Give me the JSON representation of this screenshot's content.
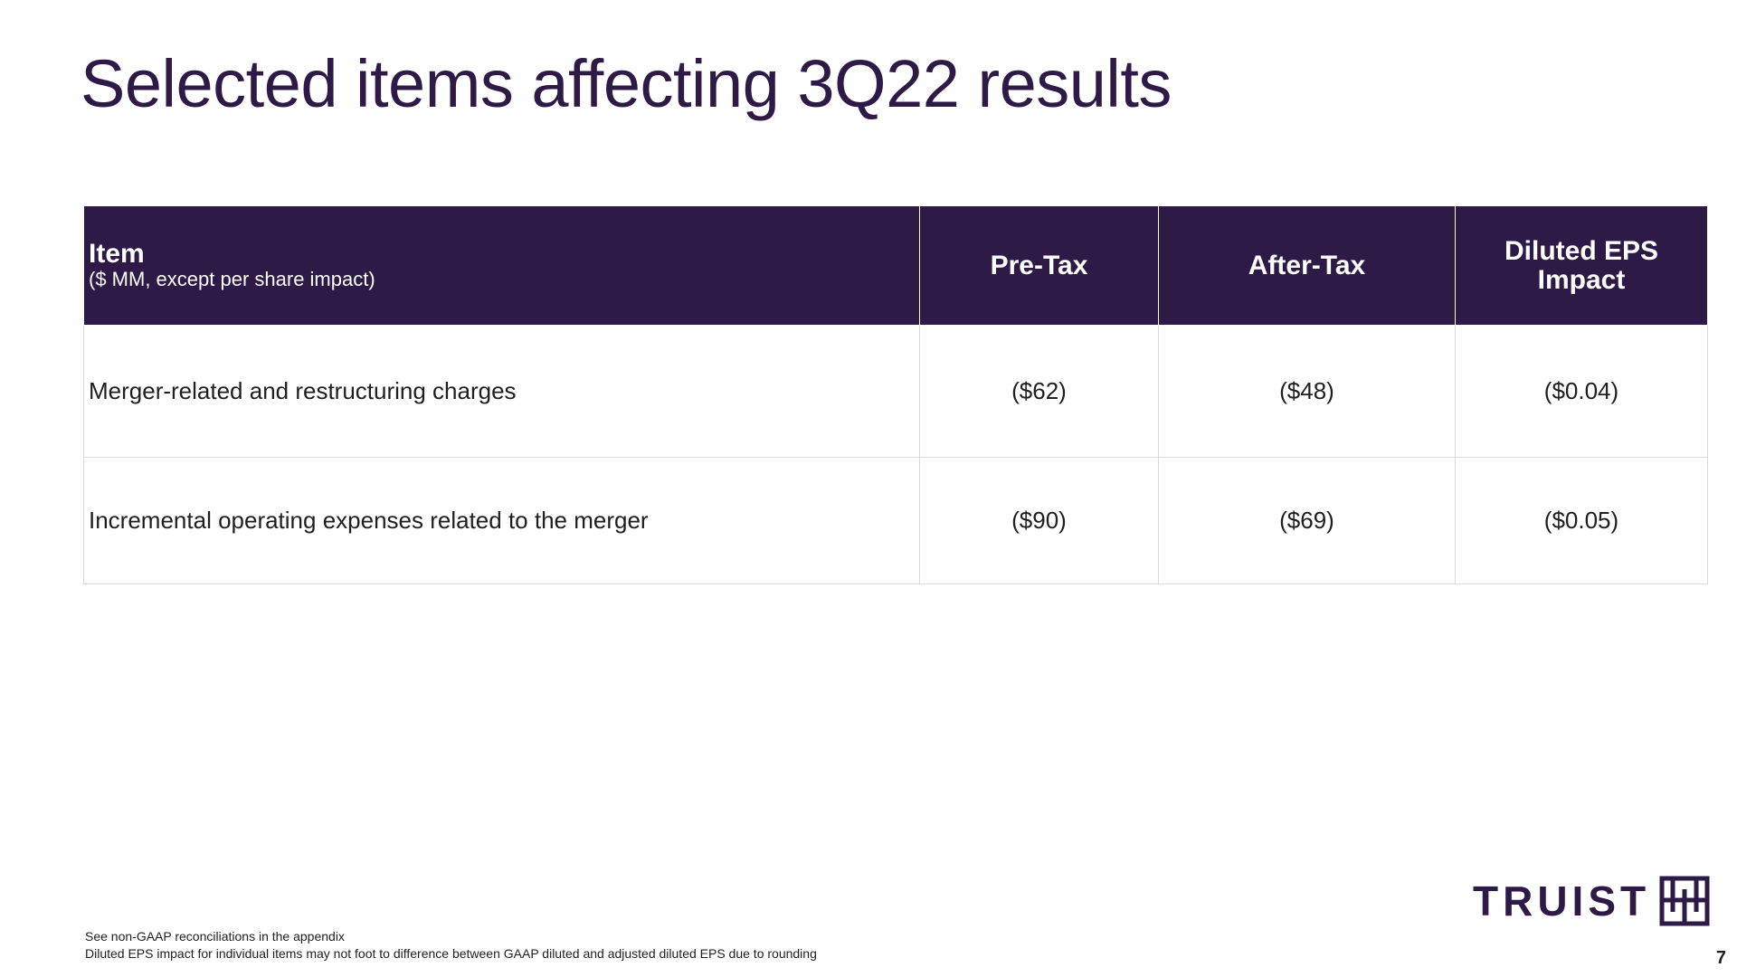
{
  "title": "Selected items affecting 3Q22 results",
  "table": {
    "headers": {
      "item": "Item",
      "item_sub": "($ MM, except per share impact)",
      "pre_tax": "Pre-Tax",
      "after_tax": "After-Tax",
      "eps_line1": "Diluted EPS",
      "eps_line2": "Impact"
    },
    "rows": [
      {
        "item": "Merger-related and restructuring charges",
        "pre_tax": "($62)",
        "after_tax": "($48)",
        "eps": "($0.04)"
      },
      {
        "item": "Incremental operating expenses related to the merger",
        "pre_tax": "($90)",
        "after_tax": "($69)",
        "eps": "($0.05)"
      }
    ]
  },
  "footnotes": [
    "See non-GAAP reconciliations in the appendix",
    "Diluted EPS impact for individual items may not foot to difference between GAAP diluted and adjusted diluted EPS due to rounding"
  ],
  "logo": {
    "text": "TRUIST",
    "icon": "truist-mark-icon",
    "color": "#2e1a47"
  },
  "page_number": "7",
  "colors": {
    "header_bg": "#2e1a47",
    "title": "#2e1a47",
    "grid": "#d9d9d9"
  }
}
